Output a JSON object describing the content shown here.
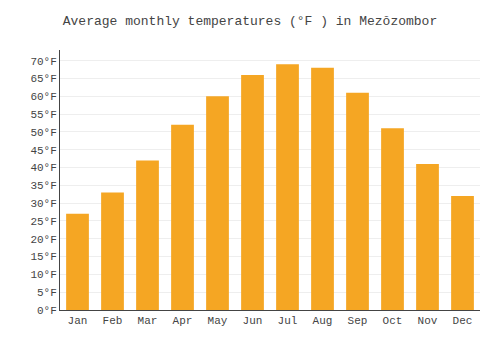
{
  "chart_data": {
    "type": "bar",
    "title": "Average monthly temperatures (°F ) in Mezŏzombor",
    "categories": [
      "Jan",
      "Feb",
      "Mar",
      "Apr",
      "May",
      "Jun",
      "Jul",
      "Aug",
      "Sep",
      "Oct",
      "Nov",
      "Dec"
    ],
    "values": [
      27,
      33,
      42,
      52,
      60,
      66,
      69,
      68,
      61,
      51,
      41,
      32
    ],
    "color": "#F5A623",
    "ylim": [
      0,
      73
    ],
    "yticks": [
      {
        "value": 0,
        "label": "0°F"
      },
      {
        "value": 5,
        "label": "5°F"
      },
      {
        "value": 10,
        "label": "10°F"
      },
      {
        "value": 15,
        "label": "15°F"
      },
      {
        "value": 20,
        "label": "20°F"
      },
      {
        "value": 25,
        "label": "25°F"
      },
      {
        "value": 30,
        "label": "30°F"
      },
      {
        "value": 35,
        "label": "35°F"
      },
      {
        "value": 40,
        "label": "40°F"
      },
      {
        "value": 45,
        "label": "45°F"
      },
      {
        "value": 50,
        "label": "50°F"
      },
      {
        "value": 55,
        "label": "55°F"
      },
      {
        "value": 60,
        "label": "60°F"
      },
      {
        "value": 65,
        "label": "65°F"
      },
      {
        "value": 70,
        "label": "70°F"
      }
    ],
    "grid": true
  }
}
